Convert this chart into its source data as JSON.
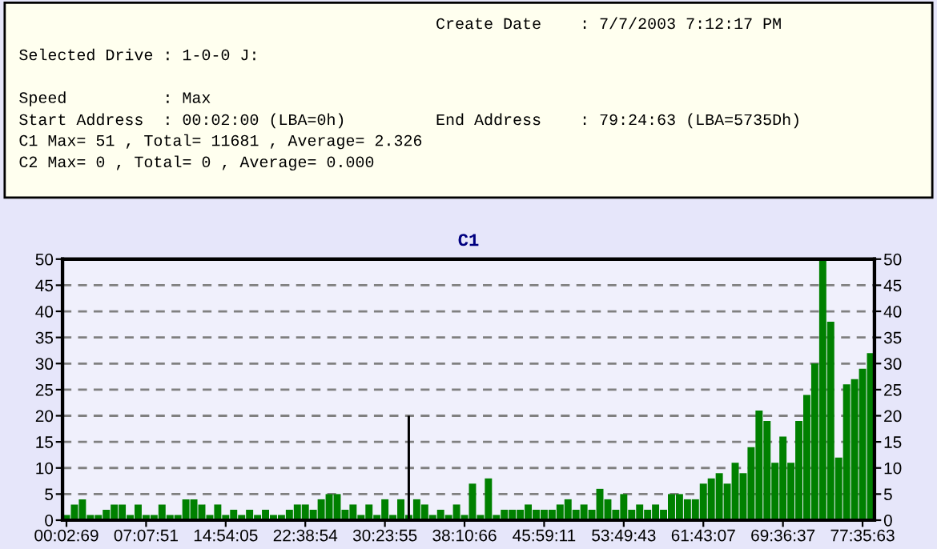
{
  "chart_data": {
    "type": "bar",
    "title": "C1",
    "annotations": [
      "Create Date    : 7/7/2003 7:12:17 PM",
      "Selected Drive : 1-0-0 J:",
      "Speed          : Max",
      "Start Address  : 00:02:00 (LBA=0h)",
      "End Address    : 79:24:63 (LBA=5735Dh)",
      "C1 Max= 51 , Total= 11681 , Average= 2.326",
      "C2 Max= 0 , Total= 0 , Average= 0.000"
    ],
    "categories": [
      "00:02:69",
      null,
      null,
      null,
      null,
      null,
      null,
      null,
      null,
      null,
      "07:07:51",
      null,
      null,
      null,
      null,
      null,
      null,
      null,
      null,
      null,
      "14:54:05",
      null,
      null,
      null,
      null,
      null,
      null,
      null,
      null,
      null,
      "22:38:54",
      null,
      null,
      null,
      null,
      null,
      null,
      null,
      null,
      null,
      "30:23:55",
      null,
      null,
      null,
      null,
      null,
      null,
      null,
      null,
      null,
      "38:10:66",
      null,
      null,
      null,
      null,
      null,
      null,
      null,
      null,
      null,
      "45:59:11",
      null,
      null,
      null,
      null,
      null,
      null,
      null,
      null,
      null,
      "53:49:43",
      null,
      null,
      null,
      null,
      null,
      null,
      null,
      null,
      null,
      "61:43:07",
      null,
      null,
      null,
      null,
      null,
      null,
      null,
      null,
      null,
      "69:36:37",
      null,
      null,
      null,
      null,
      null,
      null,
      null,
      null,
      null,
      "77:35:63",
      null
    ],
    "series": [
      {
        "color": "#008000",
        "values": [
          1,
          3,
          4,
          1,
          1,
          2,
          3,
          3,
          1,
          3,
          1,
          1,
          3,
          1,
          1,
          4,
          4,
          3,
          1,
          3,
          1,
          2,
          1,
          2,
          1,
          2,
          1,
          1,
          2,
          3,
          3,
          2,
          4,
          5,
          5,
          2,
          3,
          1,
          3,
          1,
          4,
          1,
          4,
          1,
          4,
          3,
          1,
          2,
          1,
          3,
          1,
          7,
          1,
          8,
          1,
          2,
          2,
          2,
          3,
          2,
          2,
          2,
          3,
          4,
          2,
          3,
          2,
          6,
          4,
          2,
          5,
          2,
          3,
          2,
          3,
          2,
          5,
          5,
          4,
          4,
          7,
          8,
          9,
          7,
          11,
          9,
          14,
          21,
          19,
          11,
          16,
          11,
          19,
          24,
          30,
          50,
          38,
          12,
          26,
          27,
          29,
          32
        ]
      },
      {
        "color": "#000000",
        "values": [
          null,
          null,
          null,
          null,
          null,
          null,
          null,
          null,
          null,
          null,
          null,
          null,
          null,
          null,
          null,
          null,
          null,
          null,
          null,
          null,
          null,
          null,
          null,
          null,
          null,
          null,
          null,
          null,
          null,
          null,
          null,
          null,
          null,
          null,
          null,
          null,
          null,
          null,
          null,
          null,
          null,
          null,
          null,
          20,
          null,
          null,
          null,
          null,
          null,
          null,
          null,
          null,
          null,
          null,
          null,
          null,
          null,
          null,
          null,
          null,
          null,
          null,
          null,
          null,
          null,
          null,
          null,
          null,
          null,
          null,
          null,
          null,
          null,
          null,
          null,
          null,
          null,
          null,
          null,
          null,
          null,
          null,
          null,
          null,
          null,
          null,
          null,
          null,
          null,
          null,
          null,
          null,
          null,
          null,
          null,
          null,
          null,
          null,
          null,
          null,
          null,
          null
        ]
      }
    ],
    "ylim": [
      0,
      50
    ],
    "yticks": [
      0,
      5,
      10,
      15,
      20,
      25,
      30,
      35,
      40,
      45,
      50
    ],
    "y2lim": [
      0,
      50
    ],
    "y2ticks": [
      0,
      5,
      10,
      15,
      20,
      25,
      30,
      35,
      40,
      45,
      50
    ],
    "grid": "y",
    "line_style": "dashed"
  }
}
